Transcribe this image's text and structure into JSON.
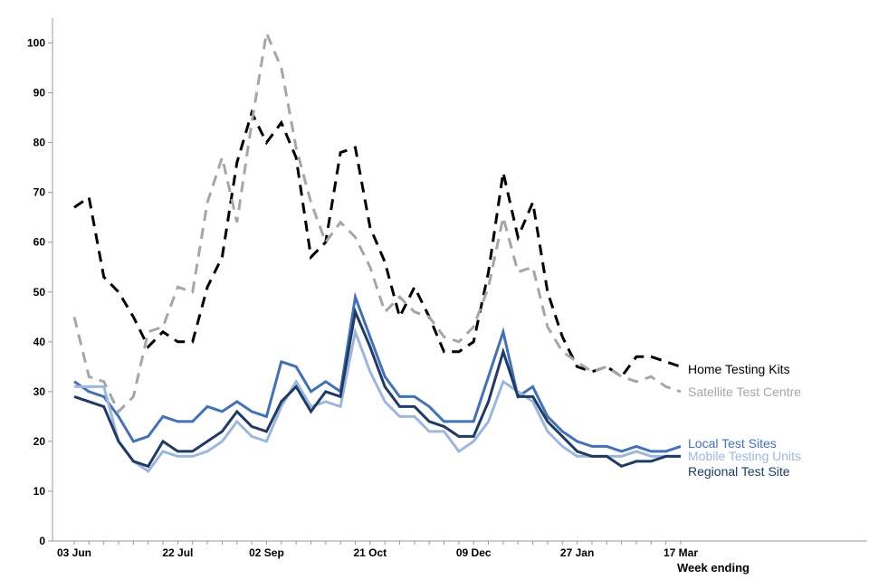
{
  "chart_data": {
    "type": "line",
    "title": "",
    "xlabel": "Week ending",
    "ylabel": "",
    "ylim": [
      0,
      105
    ],
    "yticks": [
      0,
      10,
      20,
      30,
      40,
      50,
      60,
      70,
      80,
      90,
      100
    ],
    "x_count": 42,
    "xtick_labels": [
      {
        "index": 0,
        "label": "03 Jun"
      },
      {
        "index": 7,
        "label": "22 Jul"
      },
      {
        "index": 13,
        "label": "02 Sep"
      },
      {
        "index": 20,
        "label": "21 Oct"
      },
      {
        "index": 27,
        "label": "09 Dec"
      },
      {
        "index": 34,
        "label": "27 Jan"
      },
      {
        "index": 41,
        "label": "17 Mar"
      }
    ],
    "series": [
      {
        "name": "Home Testing Kits",
        "color": "#000000",
        "dash": "dashed",
        "values": [
          67,
          69,
          53,
          50,
          45,
          39,
          42,
          40,
          40,
          51,
          57,
          76,
          86,
          80,
          84,
          77,
          57,
          60,
          78,
          79,
          63,
          56,
          45,
          51,
          45,
          38,
          38,
          40,
          54,
          74,
          61,
          68,
          50,
          41,
          35,
          34,
          35,
          33,
          37,
          37,
          36,
          35
        ]
      },
      {
        "name": "Satellite Test Centre",
        "color": "#a6a6a6",
        "dash": "dashed",
        "values": [
          45,
          33,
          32,
          26,
          29,
          42,
          43,
          51,
          50,
          68,
          77,
          64,
          84,
          102,
          95,
          79,
          68,
          60,
          64,
          61,
          55,
          46,
          49,
          46,
          45,
          41,
          40,
          43,
          51,
          65,
          54,
          55,
          43,
          38,
          36,
          34,
          35,
          33,
          32,
          33,
          31,
          30
        ]
      },
      {
        "name": "Local Test Sites",
        "color": "#4372b4",
        "dash": "solid",
        "values": [
          32,
          30,
          29,
          25,
          20,
          21,
          25,
          24,
          24,
          27,
          26,
          28,
          26,
          25,
          36,
          35,
          30,
          32,
          30,
          49,
          41,
          33,
          29,
          29,
          27,
          24,
          24,
          24,
          33,
          42,
          29,
          31,
          25,
          22,
          20,
          19,
          19,
          18,
          19,
          18,
          18,
          19
        ]
      },
      {
        "name": "Mobile Testing Units",
        "color": "#9db7dc",
        "dash": "solid",
        "values": [
          31,
          31,
          31,
          20,
          16,
          14,
          18,
          17,
          17,
          18,
          20,
          24,
          21,
          20,
          27,
          32,
          27,
          28,
          27,
          42,
          34,
          28,
          25,
          25,
          22,
          22,
          18,
          20,
          24,
          32,
          30,
          28,
          22,
          19,
          17,
          17,
          17,
          17,
          18,
          17,
          17,
          17
        ]
      },
      {
        "name": "Regional Test Site",
        "color": "#1f3b63",
        "dash": "solid",
        "values": [
          29,
          28,
          27,
          20,
          16,
          15,
          20,
          18,
          18,
          20,
          22,
          26,
          23,
          22,
          28,
          31,
          26,
          30,
          29,
          46,
          39,
          31,
          27,
          27,
          24,
          23,
          21,
          21,
          28,
          38,
          29,
          29,
          24,
          21,
          18,
          17,
          17,
          15,
          16,
          16,
          17,
          17
        ]
      }
    ]
  }
}
